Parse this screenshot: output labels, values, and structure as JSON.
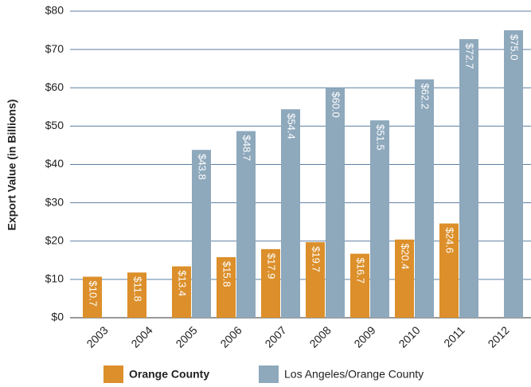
{
  "chart_data": {
    "type": "bar",
    "y_label": "Export Value (in Billions)",
    "categories": [
      "2003",
      "2004",
      "2005",
      "2006",
      "2007",
      "2008",
      "2009",
      "2010",
      "2011",
      "2012"
    ],
    "series": [
      {
        "name": "Orange County",
        "color": "#dc8f2a",
        "values": [
          10.7,
          11.8,
          13.4,
          15.8,
          17.9,
          19.7,
          16.7,
          20.4,
          24.6,
          null
        ],
        "value_labels": [
          "$10.7",
          "$11.8",
          "$13.4",
          "$15.8",
          "$17.9",
          "$19.7",
          "$16.7",
          "$20.4",
          "$24.6",
          null
        ]
      },
      {
        "name": "Los Angeles/Orange County",
        "color": "#8ea8bc",
        "values": [
          null,
          null,
          43.8,
          48.7,
          54.4,
          60.0,
          51.5,
          62.2,
          72.7,
          75.0
        ],
        "value_labels": [
          null,
          null,
          "$43.8",
          "$48.7",
          "$54.4",
          "$60.0",
          "$51.5",
          "$62.2",
          "$72.7",
          "$75.0"
        ]
      }
    ],
    "ylim": [
      0,
      80
    ],
    "yticks": [
      {
        "value": 0,
        "label": "$0"
      },
      {
        "value": 10,
        "label": "$10"
      },
      {
        "value": 20,
        "label": "$20"
      },
      {
        "value": 30,
        "label": "$30"
      },
      {
        "value": 40,
        "label": "$40"
      },
      {
        "value": 50,
        "label": "$50"
      },
      {
        "value": 60,
        "label": "$60"
      },
      {
        "value": 70,
        "label": "$70"
      },
      {
        "value": 80,
        "label": "$80"
      }
    ],
    "grid": true,
    "legend": "bottom"
  }
}
